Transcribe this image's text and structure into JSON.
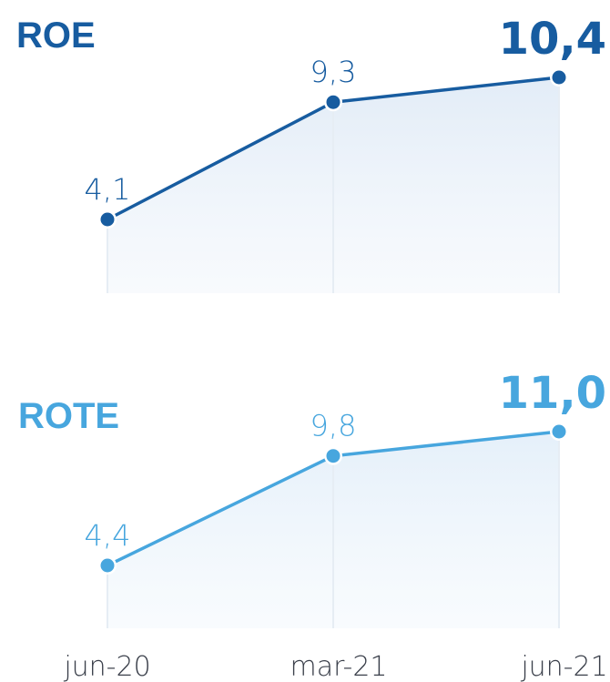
{
  "chart_data": [
    {
      "type": "line",
      "title": "ROE",
      "categories": [
        "jun-20",
        "mar-21",
        "jun-21"
      ],
      "values": [
        4.1,
        9.3,
        10.4
      ],
      "labels": [
        "4,1",
        "9,3",
        "10,4"
      ],
      "ylim": [
        0,
        11
      ],
      "color": "#175ca0",
      "grid": false
    },
    {
      "type": "line",
      "title": "ROTE",
      "categories": [
        "jun-20",
        "mar-21",
        "jun-21"
      ],
      "values": [
        4.4,
        9.8,
        11.0
      ],
      "labels": [
        "4,4",
        "9,8",
        "11,0"
      ],
      "ylim": [
        0,
        11
      ],
      "color": "#47a6de",
      "grid": false
    }
  ],
  "xaxis": {
    "ticks": [
      "jun-20",
      "mar-21",
      "jun-21"
    ]
  }
}
